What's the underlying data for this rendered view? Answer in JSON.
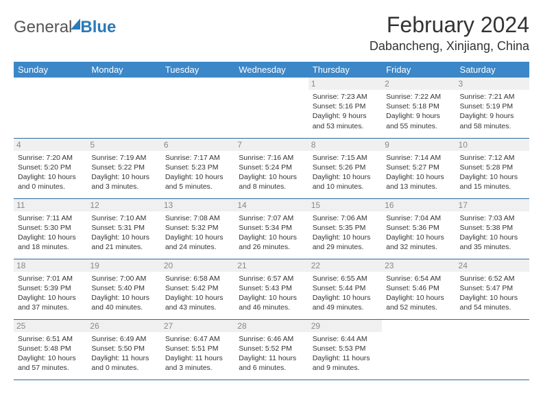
{
  "logo": {
    "part1": "General",
    "part2": "Blue"
  },
  "title": "February 2024",
  "location": "Dabancheng, Xinjiang, China",
  "colors": {
    "header_bg": "#3b87c8",
    "header_text": "#ffffff",
    "daynum_bg": "#f0f0f0",
    "daynum_text": "#888888",
    "rule": "#2a6aa0",
    "logo_blue": "#2a7ab8"
  },
  "day_headers": [
    "Sunday",
    "Monday",
    "Tuesday",
    "Wednesday",
    "Thursday",
    "Friday",
    "Saturday"
  ],
  "weeks": [
    [
      null,
      null,
      null,
      null,
      {
        "n": "1",
        "sunrise": "7:23 AM",
        "sunset": "5:16 PM",
        "daylight": "9 hours and 53 minutes."
      },
      {
        "n": "2",
        "sunrise": "7:22 AM",
        "sunset": "5:18 PM",
        "daylight": "9 hours and 55 minutes."
      },
      {
        "n": "3",
        "sunrise": "7:21 AM",
        "sunset": "5:19 PM",
        "daylight": "9 hours and 58 minutes."
      }
    ],
    [
      {
        "n": "4",
        "sunrise": "7:20 AM",
        "sunset": "5:20 PM",
        "daylight": "10 hours and 0 minutes."
      },
      {
        "n": "5",
        "sunrise": "7:19 AM",
        "sunset": "5:22 PM",
        "daylight": "10 hours and 3 minutes."
      },
      {
        "n": "6",
        "sunrise": "7:17 AM",
        "sunset": "5:23 PM",
        "daylight": "10 hours and 5 minutes."
      },
      {
        "n": "7",
        "sunrise": "7:16 AM",
        "sunset": "5:24 PM",
        "daylight": "10 hours and 8 minutes."
      },
      {
        "n": "8",
        "sunrise": "7:15 AM",
        "sunset": "5:26 PM",
        "daylight": "10 hours and 10 minutes."
      },
      {
        "n": "9",
        "sunrise": "7:14 AM",
        "sunset": "5:27 PM",
        "daylight": "10 hours and 13 minutes."
      },
      {
        "n": "10",
        "sunrise": "7:12 AM",
        "sunset": "5:28 PM",
        "daylight": "10 hours and 15 minutes."
      }
    ],
    [
      {
        "n": "11",
        "sunrise": "7:11 AM",
        "sunset": "5:30 PM",
        "daylight": "10 hours and 18 minutes."
      },
      {
        "n": "12",
        "sunrise": "7:10 AM",
        "sunset": "5:31 PM",
        "daylight": "10 hours and 21 minutes."
      },
      {
        "n": "13",
        "sunrise": "7:08 AM",
        "sunset": "5:32 PM",
        "daylight": "10 hours and 24 minutes."
      },
      {
        "n": "14",
        "sunrise": "7:07 AM",
        "sunset": "5:34 PM",
        "daylight": "10 hours and 26 minutes."
      },
      {
        "n": "15",
        "sunrise": "7:06 AM",
        "sunset": "5:35 PM",
        "daylight": "10 hours and 29 minutes."
      },
      {
        "n": "16",
        "sunrise": "7:04 AM",
        "sunset": "5:36 PM",
        "daylight": "10 hours and 32 minutes."
      },
      {
        "n": "17",
        "sunrise": "7:03 AM",
        "sunset": "5:38 PM",
        "daylight": "10 hours and 35 minutes."
      }
    ],
    [
      {
        "n": "18",
        "sunrise": "7:01 AM",
        "sunset": "5:39 PM",
        "daylight": "10 hours and 37 minutes."
      },
      {
        "n": "19",
        "sunrise": "7:00 AM",
        "sunset": "5:40 PM",
        "daylight": "10 hours and 40 minutes."
      },
      {
        "n": "20",
        "sunrise": "6:58 AM",
        "sunset": "5:42 PM",
        "daylight": "10 hours and 43 minutes."
      },
      {
        "n": "21",
        "sunrise": "6:57 AM",
        "sunset": "5:43 PM",
        "daylight": "10 hours and 46 minutes."
      },
      {
        "n": "22",
        "sunrise": "6:55 AM",
        "sunset": "5:44 PM",
        "daylight": "10 hours and 49 minutes."
      },
      {
        "n": "23",
        "sunrise": "6:54 AM",
        "sunset": "5:46 PM",
        "daylight": "10 hours and 52 minutes."
      },
      {
        "n": "24",
        "sunrise": "6:52 AM",
        "sunset": "5:47 PM",
        "daylight": "10 hours and 54 minutes."
      }
    ],
    [
      {
        "n": "25",
        "sunrise": "6:51 AM",
        "sunset": "5:48 PM",
        "daylight": "10 hours and 57 minutes."
      },
      {
        "n": "26",
        "sunrise": "6:49 AM",
        "sunset": "5:50 PM",
        "daylight": "11 hours and 0 minutes."
      },
      {
        "n": "27",
        "sunrise": "6:47 AM",
        "sunset": "5:51 PM",
        "daylight": "11 hours and 3 minutes."
      },
      {
        "n": "28",
        "sunrise": "6:46 AM",
        "sunset": "5:52 PM",
        "daylight": "11 hours and 6 minutes."
      },
      {
        "n": "29",
        "sunrise": "6:44 AM",
        "sunset": "5:53 PM",
        "daylight": "11 hours and 9 minutes."
      },
      null,
      null
    ]
  ],
  "labels": {
    "sunrise": "Sunrise: ",
    "sunset": "Sunset: ",
    "daylight": "Daylight: "
  }
}
